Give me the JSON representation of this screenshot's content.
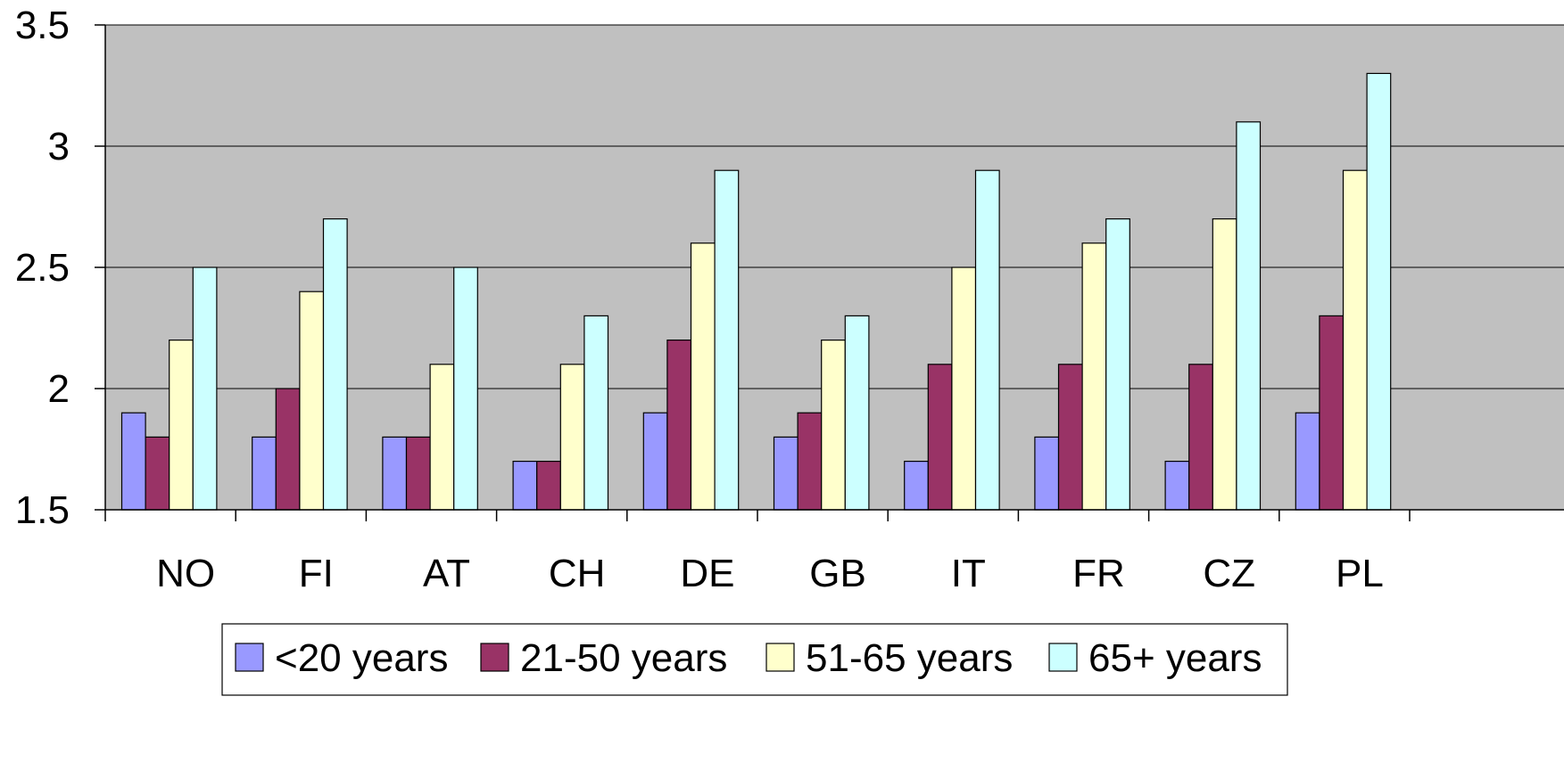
{
  "chart_data": {
    "type": "bar",
    "categories": [
      "NO",
      "FI",
      "AT",
      "CH",
      "DE",
      "GB",
      "IT",
      "FR",
      "CZ",
      "PL"
    ],
    "series": [
      {
        "name": "<20 years",
        "color": "#9999ff",
        "values": [
          1.9,
          1.8,
          1.8,
          1.7,
          1.9,
          1.8,
          1.7,
          1.8,
          1.7,
          1.9
        ]
      },
      {
        "name": "21-50 years",
        "color": "#993366",
        "values": [
          1.8,
          2.0,
          1.8,
          1.7,
          2.2,
          1.9,
          2.1,
          2.1,
          2.1,
          2.3
        ]
      },
      {
        "name": "51-65 years",
        "color": "#ffffcc",
        "values": [
          2.2,
          2.4,
          2.1,
          2.1,
          2.6,
          2.2,
          2.5,
          2.6,
          2.7,
          2.9
        ]
      },
      {
        "name": "65+ years",
        "color": "#ccffff",
        "values": [
          2.5,
          2.7,
          2.5,
          2.3,
          2.9,
          2.3,
          2.9,
          2.7,
          3.1,
          3.3
        ]
      }
    ],
    "y_ticks": [
      "1.5",
      "2",
      "2.5",
      "3",
      "3.5"
    ],
    "ylim": [
      1.5,
      3.5
    ],
    "grid": true,
    "plot_background": "#c0c0c0",
    "legend_position": "bottom",
    "title": "",
    "xlabel": "",
    "ylabel": ""
  }
}
